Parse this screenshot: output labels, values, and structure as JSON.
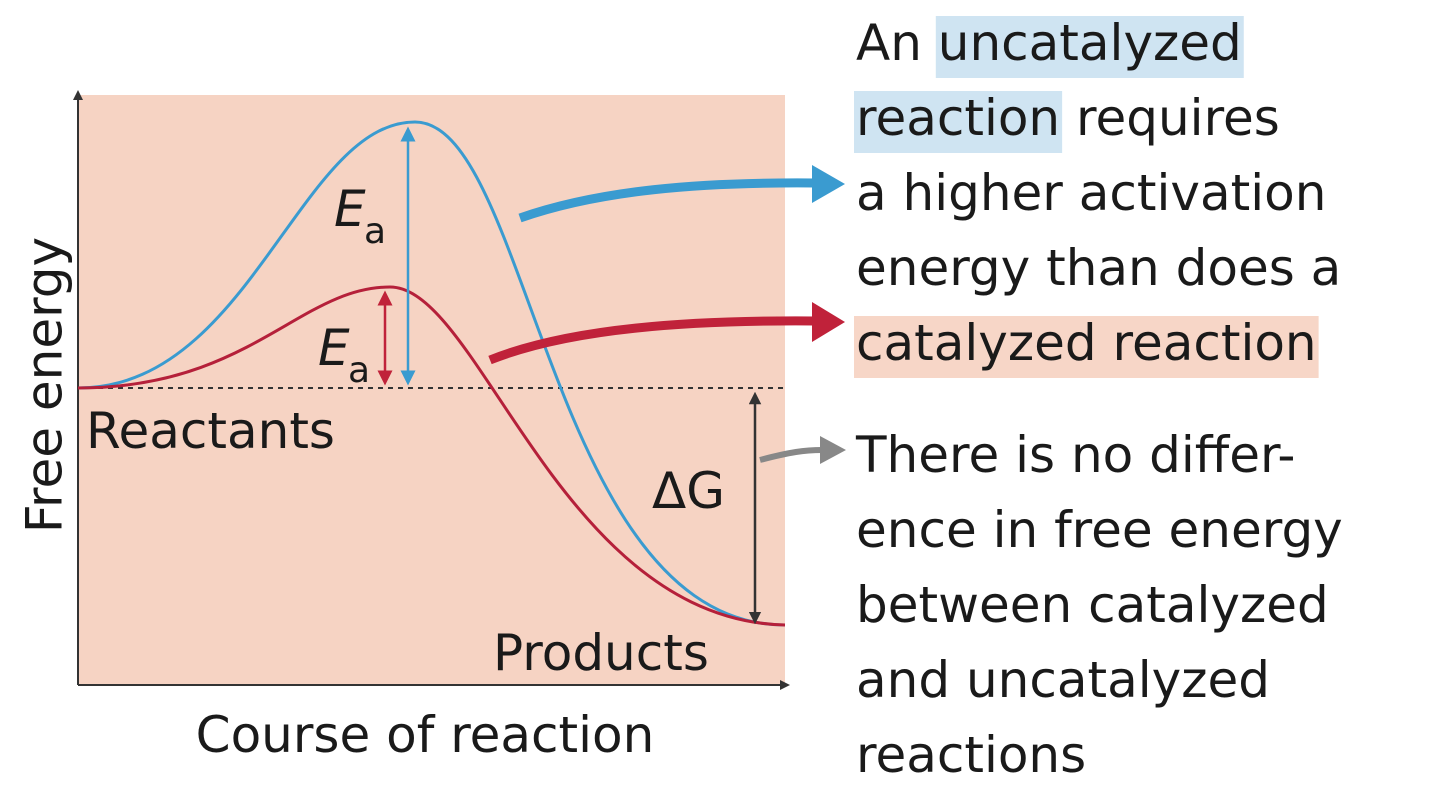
{
  "axes": {
    "y_label": "Free energy",
    "x_label": "Course of reaction"
  },
  "labels": {
    "reactants": "Reactants",
    "products": "Products",
    "ea_uncatalyzed": {
      "symbol": "E",
      "subscript": "a"
    },
    "ea_catalyzed": {
      "symbol": "E",
      "subscript": "a"
    },
    "delta_g": "ΔG"
  },
  "notes": {
    "uncatalyzed": {
      "lines": [
        [
          {
            "text": "An "
          },
          {
            "text": "uncatalyzed",
            "highlight": "#cfe4f2"
          }
        ],
        [
          {
            "text": "reaction",
            "highlight": "#cfe4f2"
          },
          {
            "text": " requires"
          }
        ],
        [
          {
            "text": "a higher activation"
          }
        ],
        [
          {
            "text": "energy than does a"
          }
        ],
        [
          {
            "text": "catalyzed reaction",
            "highlight": "#f7d6c7"
          }
        ]
      ]
    },
    "difference": {
      "lines": [
        [
          {
            "text": "There is no differ-"
          }
        ],
        [
          {
            "text": "ence in free energy"
          }
        ],
        [
          {
            "text": "between catalyzed"
          }
        ],
        [
          {
            "text": "and uncatalyzed"
          }
        ],
        [
          {
            "text": "reactions"
          }
        ]
      ]
    }
  }
}
